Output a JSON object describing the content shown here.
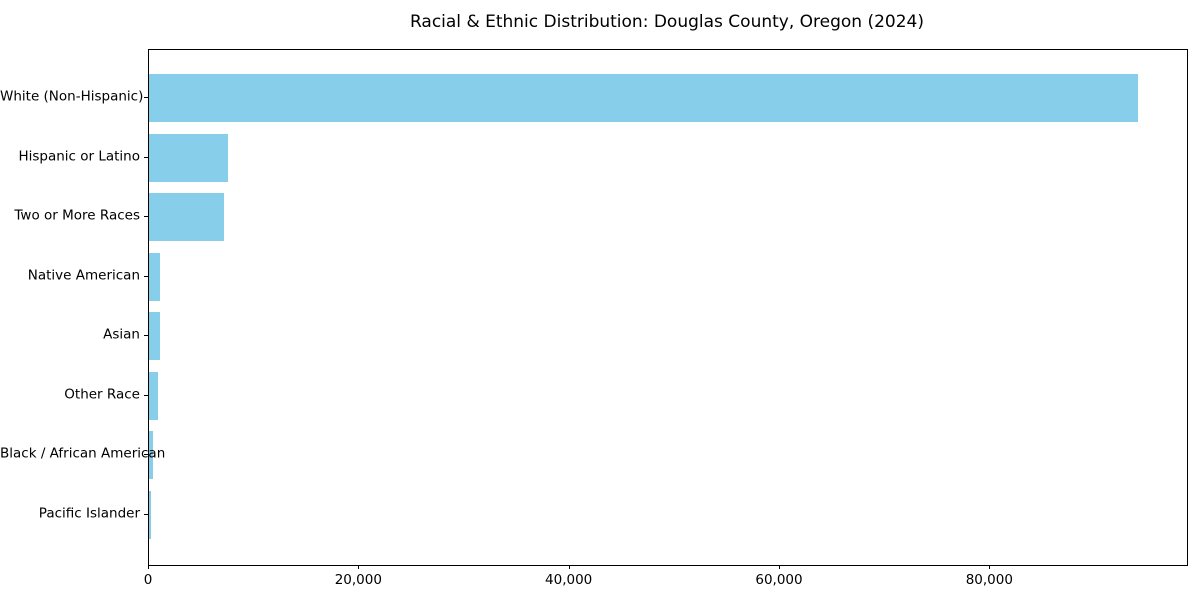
{
  "chart_data": {
    "type": "bar",
    "orientation": "horizontal",
    "title": "Racial & Ethnic Distribution: Douglas County, Oregon (2024)",
    "categories": [
      "White (Non-Hispanic)",
      "Hispanic or Latino",
      "Two or More Races",
      "Native American",
      "Asian",
      "Other Race",
      "Black / African American",
      "Pacific Islander"
    ],
    "values": [
      94000,
      7500,
      7150,
      1050,
      1000,
      900,
      400,
      150
    ],
    "bar_color": "#87CEEB",
    "xlabel": "",
    "ylabel": "",
    "xlim": [
      0,
      98700
    ],
    "xticks": [
      0,
      20000,
      40000,
      60000,
      80000
    ],
    "xtick_labels": [
      "0",
      "20,000",
      "40,000",
      "60,000",
      "80,000"
    ],
    "grid": false,
    "legend": null,
    "plot_border": "#000000",
    "background": "#ffffff"
  }
}
